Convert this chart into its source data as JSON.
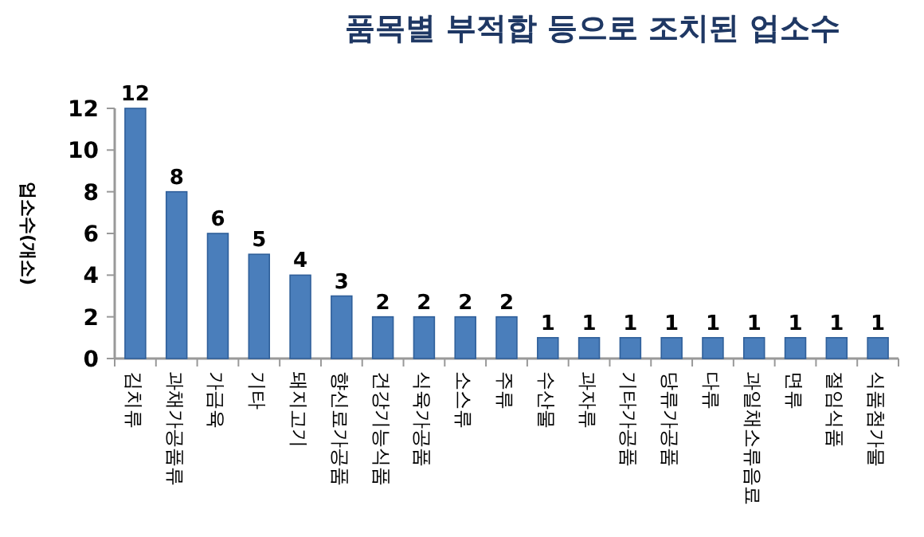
{
  "chart_data": {
    "type": "bar",
    "title": "품목별 부적합 등으로 조치된 업소수",
    "ylabel": "업소수(개소)",
    "categories": [
      "김치류",
      "과채가공품류",
      "가금육",
      "기타",
      "돼지고기",
      "향신료가공품",
      "건강기능식품",
      "식육가공품",
      "소스류",
      "주류",
      "수산물",
      "과자류",
      "기타가공품",
      "당류가공품",
      "다류",
      "과일채소류음료",
      "면류",
      "절임식품",
      "식품첨가물"
    ],
    "values": [
      12,
      8,
      6,
      5,
      4,
      3,
      2,
      2,
      2,
      2,
      1,
      1,
      1,
      1,
      1,
      1,
      1,
      1,
      1
    ],
    "color": "#4a7ebb",
    "ylim": [
      0,
      12
    ],
    "yticks": [
      0,
      2,
      4,
      6,
      8,
      10,
      12
    ],
    "data_labels": true,
    "grid": false
  }
}
